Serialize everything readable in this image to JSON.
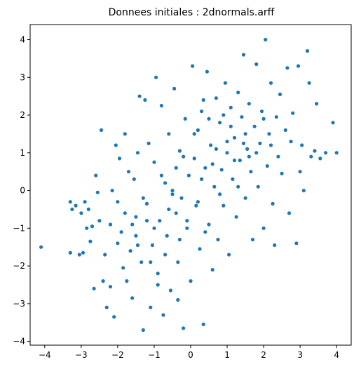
{
  "chart_data": {
    "type": "scatter",
    "title": "Donnees initiales : 2dnormals.arff",
    "xlabel": "",
    "ylabel": "",
    "xlim": [
      -4.4,
      4.4
    ],
    "ylim": [
      -4.1,
      4.4
    ],
    "xticks": [
      -4,
      -3,
      -2,
      -1,
      0,
      1,
      2,
      3,
      4
    ],
    "yticks": [
      -4,
      -3,
      -2,
      -1,
      0,
      1,
      2,
      3,
      4
    ],
    "grid": false,
    "legend": "none",
    "marker_color": "#1f77b4",
    "series": [
      {
        "points": [
          [
            -4.1,
            -1.5
          ],
          [
            -3.3,
            -1.65
          ],
          [
            -3.3,
            -0.3
          ],
          [
            -3.25,
            -0.5
          ],
          [
            -3.15,
            -0.4
          ],
          [
            -3.05,
            -1.7
          ],
          [
            -3.0,
            -0.6
          ],
          [
            -2.95,
            -1.65
          ],
          [
            -2.9,
            -0.3
          ],
          [
            -2.85,
            -1.0
          ],
          [
            -2.8,
            -0.5
          ],
          [
            -2.75,
            -1.35
          ],
          [
            -2.7,
            -0.95
          ],
          [
            -2.65,
            -2.6
          ],
          [
            -2.6,
            0.4
          ],
          [
            -2.55,
            -0.05
          ],
          [
            -2.5,
            -0.8
          ],
          [
            -2.45,
            1.6
          ],
          [
            -2.4,
            -2.4
          ],
          [
            -2.35,
            -1.7
          ],
          [
            -2.3,
            -3.1
          ],
          [
            -2.2,
            -2.55
          ],
          [
            -2.15,
            0.0
          ],
          [
            -2.1,
            -3.35
          ],
          [
            -2.05,
            1.2
          ],
          [
            -2.0,
            -0.3
          ],
          [
            -1.95,
            0.85
          ],
          [
            -1.9,
            -1.1
          ],
          [
            -1.85,
            -2.05
          ],
          [
            -1.8,
            1.5
          ],
          [
            -1.75,
            -2.4
          ],
          [
            -1.7,
            0.5
          ],
          [
            -1.65,
            -1.6
          ],
          [
            -1.6,
            -2.85
          ],
          [
            -1.55,
            0.3
          ],
          [
            -1.5,
            -0.7
          ],
          [
            -1.45,
            1.0
          ],
          [
            -1.4,
            2.5
          ],
          [
            -1.35,
            -1.9
          ],
          [
            -1.3,
            -3.7
          ],
          [
            -1.25,
            2.4
          ],
          [
            -1.2,
            -0.35
          ],
          [
            -1.15,
            1.25
          ],
          [
            -1.1,
            -3.1
          ],
          [
            -1.05,
            -1.45
          ],
          [
            -1.0,
            0.75
          ],
          [
            -0.95,
            3.0
          ],
          [
            -0.9,
            -2.2
          ],
          [
            -0.85,
            -0.8
          ],
          [
            -0.8,
            2.25
          ],
          [
            -0.75,
            -3.3
          ],
          [
            -0.7,
            0.2
          ],
          [
            -0.65,
            -1.2
          ],
          [
            -0.6,
            1.5
          ],
          [
            -0.55,
            -2.65
          ],
          [
            -0.5,
            0.0
          ],
          [
            -0.45,
            2.7
          ],
          [
            -0.4,
            -0.6
          ],
          [
            -0.35,
            -1.9
          ],
          [
            -0.3,
            1.05
          ],
          [
            -0.25,
            -0.2
          ],
          [
            -0.2,
            -3.65
          ],
          [
            -0.15,
            1.9
          ],
          [
            -0.1,
            -1.0
          ],
          [
            -0.05,
            0.4
          ],
          [
            0.0,
            -2.4
          ],
          [
            0.05,
            3.3
          ],
          [
            0.1,
            0.85
          ],
          [
            0.15,
            -0.4
          ],
          [
            0.2,
            1.6
          ],
          [
            0.25,
            -1.55
          ],
          [
            0.3,
            2.1
          ],
          [
            0.35,
            -3.55
          ],
          [
            0.4,
            0.6
          ],
          [
            0.45,
            3.15
          ],
          [
            0.5,
            -0.9
          ],
          [
            0.55,
            1.2
          ],
          [
            0.6,
            -2.1
          ],
          [
            0.65,
            0.1
          ],
          [
            0.7,
            2.45
          ],
          [
            0.75,
            -1.3
          ],
          [
            0.8,
            1.8
          ],
          [
            0.85,
            0.55
          ],
          [
            0.9,
            -0.4
          ],
          [
            0.95,
            2.85
          ],
          [
            1.0,
            1.0
          ],
          [
            1.05,
            -1.7
          ],
          [
            1.1,
            2.2
          ],
          [
            1.15,
            0.3
          ],
          [
            1.2,
            1.4
          ],
          [
            1.25,
            -0.7
          ],
          [
            1.3,
            2.6
          ],
          [
            1.35,
            0.8
          ],
          [
            1.4,
            1.95
          ],
          [
            1.45,
            3.6
          ],
          [
            1.5,
            -0.2
          ],
          [
            1.55,
            1.1
          ],
          [
            1.6,
            2.3
          ],
          [
            1.65,
            0.5
          ],
          [
            1.7,
            -1.3
          ],
          [
            1.75,
            1.7
          ],
          [
            1.8,
            3.35
          ],
          [
            1.85,
            0.1
          ],
          [
            1.9,
            1.25
          ],
          [
            1.95,
            2.1
          ],
          [
            2.0,
            -1.0
          ],
          [
            2.05,
            4.0
          ],
          [
            2.1,
            0.65
          ],
          [
            2.15,
            1.5
          ],
          [
            2.2,
            2.85
          ],
          [
            2.25,
            -0.35
          ],
          [
            2.3,
            -1.45
          ],
          [
            2.35,
            1.95
          ],
          [
            2.4,
            0.9
          ],
          [
            2.45,
            2.55
          ],
          [
            2.5,
            0.45
          ],
          [
            2.6,
            1.6
          ],
          [
            2.65,
            3.25
          ],
          [
            2.7,
            -0.6
          ],
          [
            2.75,
            1.3
          ],
          [
            2.8,
            2.05
          ],
          [
            2.9,
            -1.4
          ],
          [
            2.95,
            3.3
          ],
          [
            3.0,
            0.5
          ],
          [
            3.05,
            1.2
          ],
          [
            3.1,
            0.0
          ],
          [
            3.2,
            3.7
          ],
          [
            3.25,
            2.85
          ],
          [
            3.3,
            0.9
          ],
          [
            3.4,
            1.05
          ],
          [
            3.45,
            2.3
          ],
          [
            3.55,
            0.85
          ],
          [
            3.7,
            1.0
          ],
          [
            3.9,
            1.8
          ],
          [
            4.0,
            1.0
          ],
          [
            -0.2,
            0.9
          ],
          [
            0.2,
            -0.3
          ],
          [
            -0.6,
            -0.5
          ],
          [
            0.6,
            0.7
          ],
          [
            -1.0,
            -1.0
          ],
          [
            1.0,
            1.3
          ],
          [
            -0.3,
            -1.3
          ],
          [
            0.3,
            0.3
          ],
          [
            -0.8,
            0.4
          ],
          [
            0.8,
            -0.1
          ],
          [
            -1.2,
            -0.8
          ],
          [
            1.2,
            0.8
          ],
          [
            -1.5,
            -1.2
          ],
          [
            1.5,
            1.5
          ],
          [
            -0.1,
            -0.8
          ],
          [
            0.1,
            1.5
          ],
          [
            -0.7,
            -1.7
          ],
          [
            0.7,
            1.1
          ],
          [
            -1.3,
            -0.2
          ],
          [
            1.3,
            0.1
          ],
          [
            -1.8,
            -0.6
          ],
          [
            1.8,
            1.0
          ],
          [
            -2.0,
            -1.4
          ],
          [
            2.0,
            1.9
          ],
          [
            -0.4,
            0.6
          ],
          [
            0.4,
            -1.1
          ],
          [
            -0.9,
            -2.5
          ],
          [
            0.9,
            2.0
          ],
          [
            -1.6,
            -0.9
          ],
          [
            1.6,
            0.9
          ],
          [
            -2.2,
            -0.9
          ],
          [
            2.2,
            1.2
          ],
          [
            -0.5,
            -0.1
          ],
          [
            0.5,
            1.9
          ],
          [
            -1.1,
            -1.9
          ],
          [
            1.1,
            1.7
          ],
          [
            -0.35,
            -2.9
          ],
          [
            0.35,
            2.4
          ],
          [
            -1.45,
            -1.45
          ],
          [
            1.45,
            1.25
          ]
        ]
      }
    ]
  }
}
